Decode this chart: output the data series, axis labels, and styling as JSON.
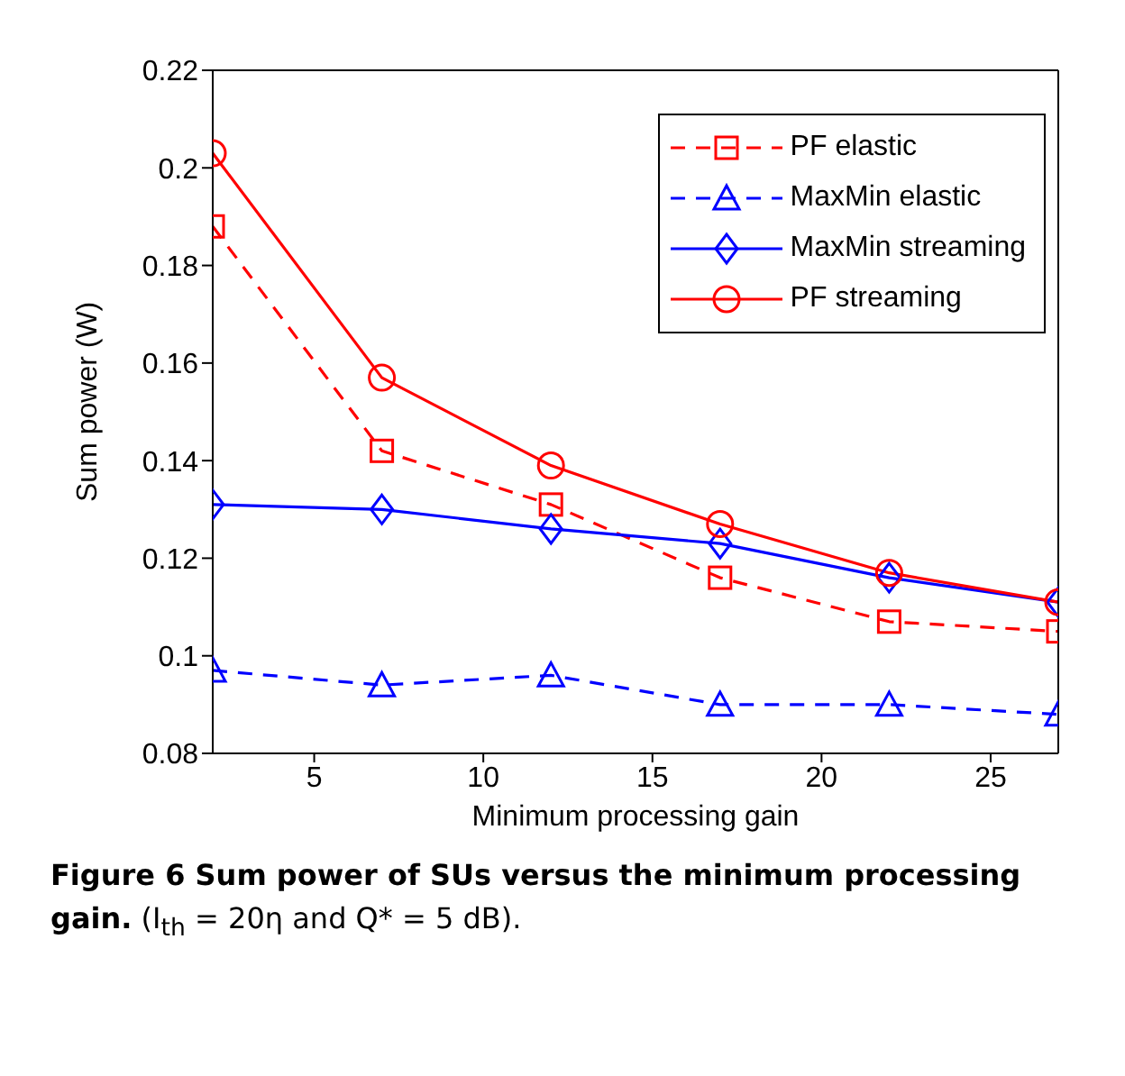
{
  "chart_data": {
    "type": "line",
    "title": "Figure 6 Sum power of SUs versus the minimum processing gain.",
    "annotations": [
      "(I$_{th}$ = 20η and Q* = 5 dB)."
    ],
    "xlabel": "Minimum processing gain",
    "ylabel": "Sum power  (W)",
    "x": [
      2,
      7,
      12,
      17,
      22,
      27
    ],
    "xlim": [
      2,
      27
    ],
    "xticks": [
      5,
      10,
      15,
      20,
      25
    ],
    "ylim": [
      0.08,
      0.22
    ],
    "yticks": [
      0.08,
      0.1,
      0.12,
      0.14,
      0.16,
      0.18,
      0.2,
      0.22
    ],
    "grid": false,
    "legend": "top right",
    "series": [
      {
        "name": "PF elastic",
        "color": "#ff0000",
        "marker": "square",
        "line_style": "dashed",
        "values": [
          0.188,
          0.142,
          0.131,
          0.116,
          0.107,
          0.105
        ]
      },
      {
        "name": "MaxMin elastic",
        "color": "#0000ff",
        "marker": "triangle",
        "line_style": "dashed",
        "values": [
          0.097,
          0.094,
          0.096,
          0.09,
          0.09,
          0.088
        ]
      },
      {
        "name": "MaxMin streaming",
        "color": "#0000ff",
        "marker": "diamond",
        "line_style": "solid",
        "values": [
          0.131,
          0.13,
          0.126,
          0.123,
          0.116,
          0.111
        ]
      },
      {
        "name": "PF streaming",
        "color": "#ff0000",
        "marker": "circle",
        "line_style": "solid",
        "values": [
          0.203,
          0.157,
          0.139,
          0.127,
          0.117,
          0.111
        ]
      }
    ]
  }
}
